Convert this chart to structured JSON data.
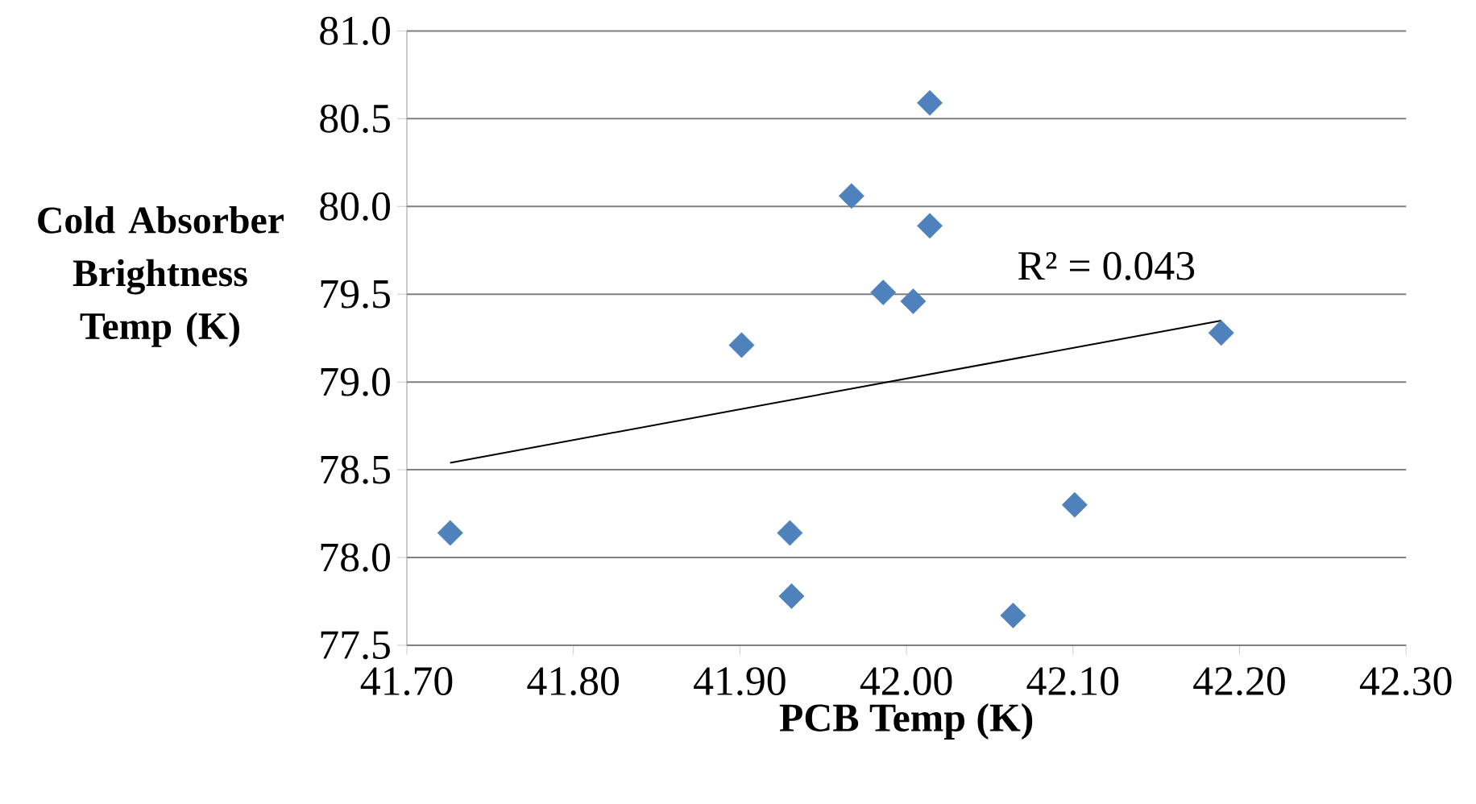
{
  "chart_data": {
    "type": "scatter",
    "xlabel": "PCB Temp (K)",
    "ylabel": "Cold Absorber Brightness Temp (K)",
    "grid": "y",
    "marker": "diamond",
    "xlim": [
      41.7,
      42.3
    ],
    "ylim": [
      77.5,
      81.0
    ],
    "xticks": [
      {
        "value": 41.7,
        "label": "41.70"
      },
      {
        "value": 41.8,
        "label": "41.80"
      },
      {
        "value": 41.9,
        "label": "41.90"
      },
      {
        "value": 42.0,
        "label": "42.00"
      },
      {
        "value": 42.1,
        "label": "42.10"
      },
      {
        "value": 42.2,
        "label": "42.20"
      },
      {
        "value": 42.3,
        "label": "42.30"
      }
    ],
    "yticks": [
      {
        "value": 77.5,
        "label": "77.5"
      },
      {
        "value": 78.0,
        "label": "78.0"
      },
      {
        "value": 78.5,
        "label": "78.5"
      },
      {
        "value": 79.0,
        "label": "79.0"
      },
      {
        "value": 79.5,
        "label": "79.5"
      },
      {
        "value": 80.0,
        "label": "80.0"
      },
      {
        "value": 80.5,
        "label": "80.5"
      },
      {
        "value": 81.0,
        "label": "81.0"
      }
    ],
    "annotations": [
      "R² = 0.043"
    ],
    "series": [
      {
        "color": "#4f81bd",
        "x": [
          41.726,
          41.901,
          41.93,
          41.931,
          41.967,
          41.986,
          42.004,
          42.014,
          42.014,
          42.064,
          42.101,
          42.189
        ],
        "values": [
          78.14,
          79.21,
          78.14,
          77.78,
          80.06,
          79.51,
          79.46,
          80.59,
          79.89,
          77.67,
          78.3,
          79.28
        ]
      },
      {
        "type": "line",
        "color": "#000000",
        "marker": "none",
        "x": [
          41.726,
          42.189
        ],
        "values": [
          78.54,
          79.35
        ]
      }
    ]
  }
}
